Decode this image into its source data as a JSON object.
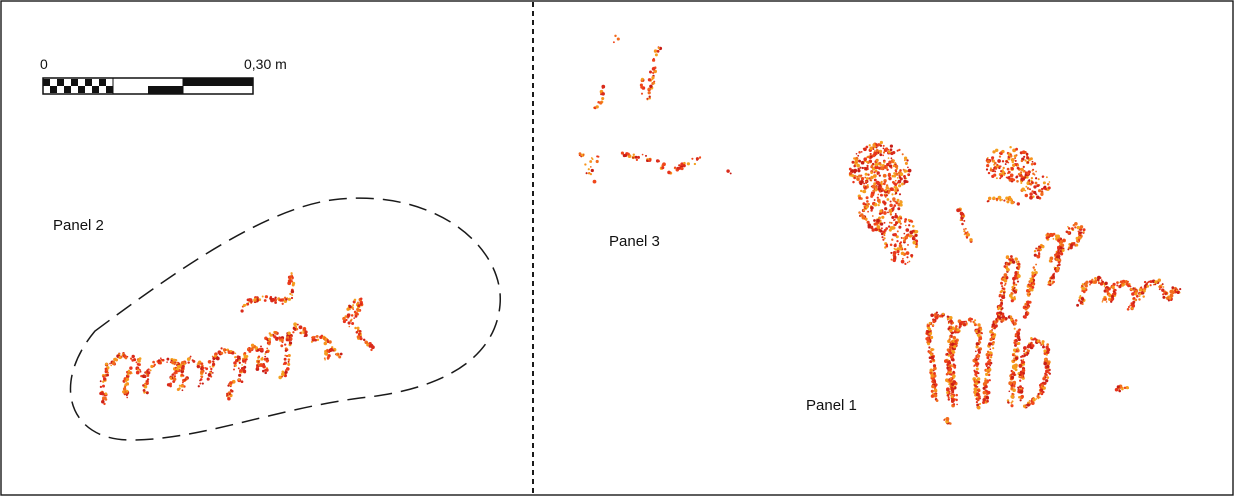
{
  "scale_bar": {
    "start_label": "0",
    "end_label": "0,30 m"
  },
  "panels": [
    {
      "id": "panel-2",
      "label": "Panel 2"
    },
    {
      "id": "panel-3",
      "label": "Panel 3"
    },
    {
      "id": "panel-1",
      "label": "Panel 1"
    }
  ],
  "colors": {
    "frame": "#1a1a1a",
    "divider": "#1a1a1a",
    "outline": "#1a1a1a",
    "dots": [
      "#e8331c",
      "#f0471b",
      "#d92a1a",
      "#f26b1d",
      "#f7941d",
      "#c81e16",
      "#f4a11f"
    ]
  }
}
